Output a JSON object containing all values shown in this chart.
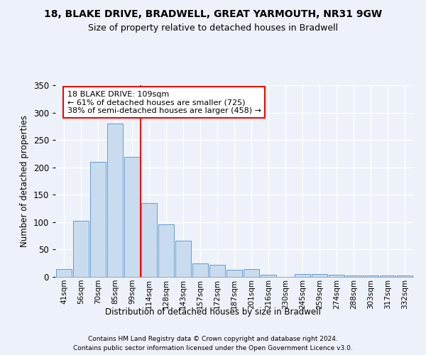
{
  "title1": "18, BLAKE DRIVE, BRADWELL, GREAT YARMOUTH, NR31 9GW",
  "title2": "Size of property relative to detached houses in Bradwell",
  "xlabel": "Distribution of detached houses by size in Bradwell",
  "ylabel": "Number of detached properties",
  "bar_labels": [
    "41sqm",
    "56sqm",
    "70sqm",
    "85sqm",
    "99sqm",
    "114sqm",
    "128sqm",
    "143sqm",
    "157sqm",
    "172sqm",
    "187sqm",
    "201sqm",
    "216sqm",
    "230sqm",
    "245sqm",
    "259sqm",
    "274sqm",
    "288sqm",
    "303sqm",
    "317sqm",
    "332sqm"
  ],
  "bar_values": [
    14,
    102,
    210,
    280,
    219,
    135,
    96,
    66,
    25,
    22,
    13,
    14,
    4,
    0,
    5,
    5,
    4,
    3,
    3,
    3,
    3
  ],
  "bar_color": "#c9dcef",
  "bar_edge_color": "#6699cc",
  "vline_x_index": 5,
  "vline_color": "red",
  "annotation_text": "18 BLAKE DRIVE: 109sqm\n← 61% of detached houses are smaller (725)\n38% of semi-detached houses are larger (458) →",
  "annotation_box_color": "white",
  "annotation_box_edge_color": "red",
  "ylim": [
    0,
    350
  ],
  "yticks": [
    0,
    50,
    100,
    150,
    200,
    250,
    300,
    350
  ],
  "footer1": "Contains HM Land Registry data © Crown copyright and database right 2024.",
  "footer2": "Contains public sector information licensed under the Open Government Licence v3.0.",
  "bg_color": "#edf2fa",
  "plot_bg_color": "#edf2fa"
}
